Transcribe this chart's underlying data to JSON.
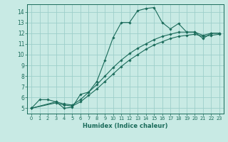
{
  "title": "",
  "xlabel": "Humidex (Indice chaleur)",
  "ylabel": "",
  "xlim": [
    -0.5,
    23.5
  ],
  "ylim": [
    4.5,
    14.7
  ],
  "xticks": [
    0,
    1,
    2,
    3,
    4,
    5,
    6,
    7,
    8,
    9,
    10,
    11,
    12,
    13,
    14,
    15,
    16,
    17,
    18,
    19,
    20,
    21,
    22,
    23
  ],
  "yticks": [
    5,
    6,
    7,
    8,
    9,
    10,
    11,
    12,
    13,
    14
  ],
  "bg_color": "#c8eae4",
  "line_color": "#1a6b5a",
  "grid_color": "#9dcfca",
  "lines": [
    {
      "x": [
        0,
        1,
        2,
        3,
        4,
        5,
        6,
        7,
        8,
        9,
        10,
        11,
        12,
        13,
        14,
        15,
        16,
        17,
        18,
        19,
        20,
        21,
        22,
        23
      ],
      "y": [
        5.0,
        5.8,
        5.8,
        5.6,
        5.0,
        5.1,
        6.3,
        6.5,
        7.5,
        9.5,
        11.6,
        13.0,
        13.0,
        14.1,
        14.3,
        14.4,
        13.0,
        12.4,
        12.9,
        12.1,
        12.1,
        11.5,
        12.0,
        12.0
      ]
    },
    {
      "x": [
        0,
        3,
        4,
        5,
        6,
        7,
        8,
        9,
        10,
        11,
        12,
        13,
        14,
        15,
        16,
        17,
        18,
        19,
        20,
        21,
        22,
        23
      ],
      "y": [
        5.0,
        5.6,
        5.4,
        5.3,
        5.8,
        6.5,
        7.2,
        8.0,
        8.8,
        9.5,
        10.1,
        10.6,
        11.0,
        11.4,
        11.7,
        11.9,
        12.1,
        12.1,
        12.1,
        11.8,
        12.0,
        12.0
      ]
    },
    {
      "x": [
        0,
        3,
        4,
        5,
        6,
        7,
        8,
        9,
        10,
        11,
        12,
        13,
        14,
        15,
        16,
        17,
        18,
        19,
        20,
        21,
        22,
        23
      ],
      "y": [
        5.0,
        5.5,
        5.3,
        5.2,
        5.6,
        6.2,
        6.8,
        7.5,
        8.2,
        8.9,
        9.5,
        10.0,
        10.5,
        10.9,
        11.2,
        11.5,
        11.7,
        11.8,
        11.9,
        11.7,
        11.8,
        11.9
      ]
    }
  ]
}
